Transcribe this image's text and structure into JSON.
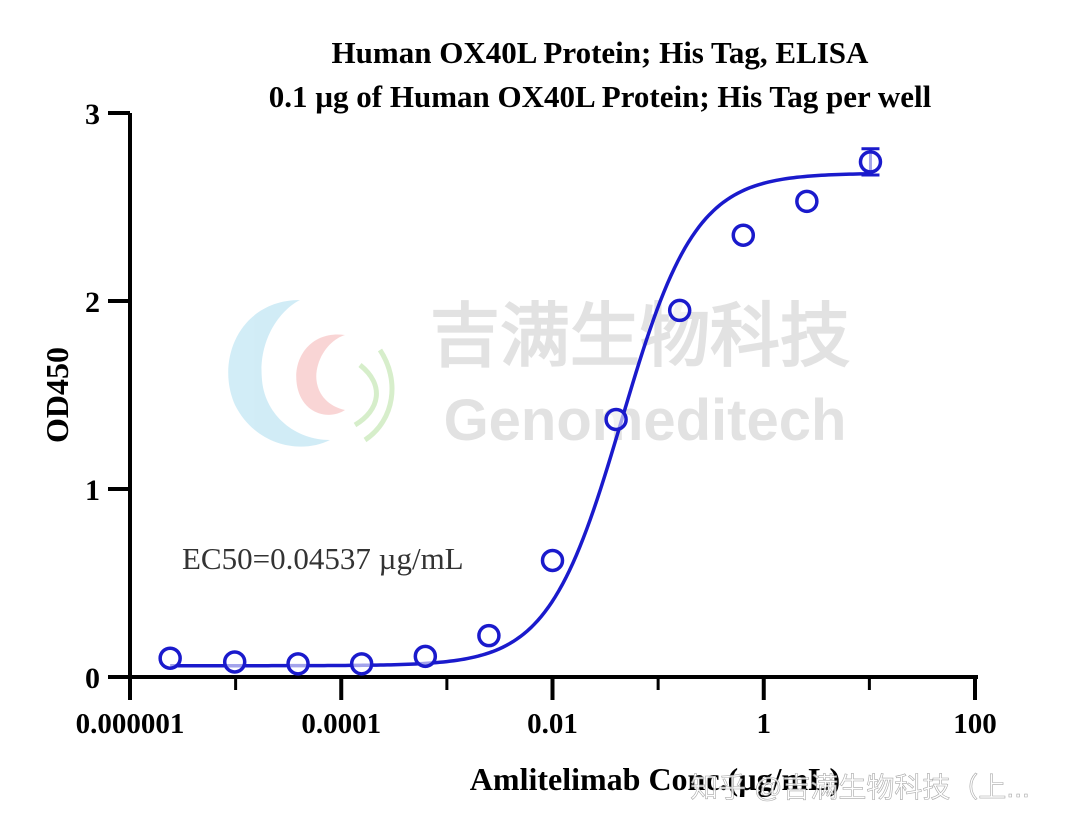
{
  "chart_data": {
    "type": "scatter",
    "title": "Human OX40L Protein; His Tag,  ELISA",
    "subtitle": "0.1 µg of Human OX40L Protein; His Tag per well",
    "xlabel": "Amlitelimab Conc.(µg/mL)",
    "ylabel": "OD450",
    "x_scale": "log10",
    "xlim": [
      1e-06,
      100
    ],
    "ylim": [
      0,
      3
    ],
    "x_ticks": [
      1e-06,
      0.0001,
      0.01,
      1,
      100
    ],
    "x_tick_labels": [
      "0.000001",
      "0.0001",
      "0.01",
      "1",
      "100"
    ],
    "y_ticks": [
      0,
      1,
      2,
      3
    ],
    "y_tick_labels": [
      "0",
      "1",
      "2",
      "3"
    ],
    "grid": false,
    "series": [
      {
        "color": "#1a1acc",
        "marker": "open-circle",
        "x": [
          2.4e-06,
          9.8e-06,
          3.9e-05,
          0.000156,
          0.000625,
          0.0025,
          0.01,
          0.04,
          0.16,
          0.64,
          2.56,
          10.24
        ],
        "y": [
          0.1,
          0.08,
          0.07,
          0.07,
          0.11,
          0.22,
          0.62,
          1.37,
          1.95,
          2.35,
          2.53,
          2.74
        ],
        "error": [
          0,
          0,
          0,
          0,
          0,
          0,
          0,
          0,
          0,
          0,
          0,
          0.07
        ]
      }
    ],
    "fit": {
      "model": "4PL",
      "bottom": 0.06,
      "top": 2.68,
      "ec50": 0.04537,
      "hill": 1.25,
      "color": "#1a1acc"
    },
    "annotation": "EC50=0.04537 µg/mL"
  },
  "watermark": {
    "cn": "吉满生物科技",
    "en": "Genomeditech",
    "credit": "知乎 @吉满生物科技（上..."
  }
}
